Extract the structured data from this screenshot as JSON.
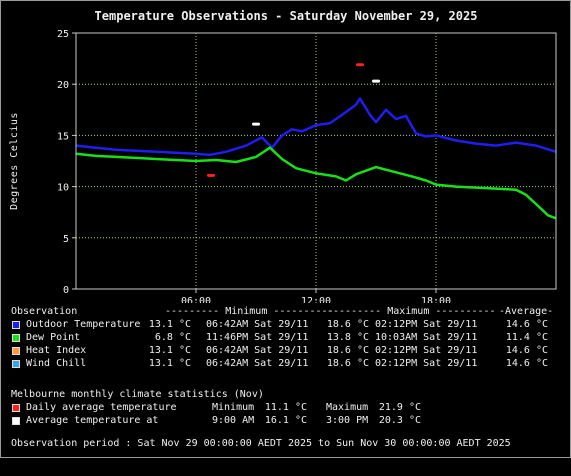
{
  "title": "Temperature Observations - Saturday November 29, 2025",
  "chart_data": {
    "type": "line",
    "title": "Temperature Observations - Saturday November 29, 2025",
    "ylabel": "Degrees Celcius",
    "xlabel": "",
    "x_range_hours": [
      0,
      24
    ],
    "ylim": [
      0,
      25
    ],
    "x_ticks": [
      {
        "hour": 6,
        "label": "06:00"
      },
      {
        "hour": 12,
        "label": "12:00"
      },
      {
        "hour": 18,
        "label": "18:00"
      }
    ],
    "y_ticks": [
      0,
      5,
      10,
      15,
      20,
      25
    ],
    "grid": true,
    "series": [
      {
        "name": "Outdoor Temperature",
        "color": "#1e1ef0",
        "points": [
          [
            0,
            14.0
          ],
          [
            1,
            13.8
          ],
          [
            2,
            13.6
          ],
          [
            3,
            13.5
          ],
          [
            4,
            13.4
          ],
          [
            5,
            13.3
          ],
          [
            6,
            13.2
          ],
          [
            6.7,
            13.1
          ],
          [
            7.5,
            13.4
          ],
          [
            8.5,
            14.0
          ],
          [
            9.3,
            14.8
          ],
          [
            9.8,
            13.8
          ],
          [
            10.3,
            15.0
          ],
          [
            10.8,
            15.6
          ],
          [
            11.3,
            15.4
          ],
          [
            12,
            16.0
          ],
          [
            12.7,
            16.2
          ],
          [
            13.3,
            17.0
          ],
          [
            14.0,
            18.0
          ],
          [
            14.2,
            18.6
          ],
          [
            14.7,
            17.0
          ],
          [
            15.0,
            16.3
          ],
          [
            15.5,
            17.5
          ],
          [
            16.0,
            16.6
          ],
          [
            16.5,
            16.9
          ],
          [
            17,
            15.2
          ],
          [
            17.5,
            14.9
          ],
          [
            18,
            15.0
          ],
          [
            19,
            14.5
          ],
          [
            20,
            14.2
          ],
          [
            21,
            14.0
          ],
          [
            22,
            14.3
          ],
          [
            23,
            14.0
          ],
          [
            24,
            13.4
          ]
        ]
      },
      {
        "name": "Dew Point",
        "color": "#18e018",
        "points": [
          [
            0,
            13.2
          ],
          [
            1,
            13.0
          ],
          [
            2,
            12.9
          ],
          [
            3,
            12.8
          ],
          [
            4,
            12.7
          ],
          [
            5,
            12.6
          ],
          [
            6,
            12.5
          ],
          [
            7,
            12.6
          ],
          [
            8,
            12.4
          ],
          [
            9,
            12.9
          ],
          [
            9.7,
            13.8
          ],
          [
            10.3,
            12.7
          ],
          [
            11,
            11.8
          ],
          [
            12,
            11.3
          ],
          [
            13,
            11.0
          ],
          [
            13.5,
            10.6
          ],
          [
            14,
            11.2
          ],
          [
            15,
            11.9
          ],
          [
            16,
            11.4
          ],
          [
            16.8,
            11.0
          ],
          [
            17.5,
            10.6
          ],
          [
            18,
            10.2
          ],
          [
            19,
            10.0
          ],
          [
            20,
            9.9
          ],
          [
            21,
            9.8
          ],
          [
            22,
            9.7
          ],
          [
            22.5,
            9.2
          ],
          [
            23,
            8.3
          ],
          [
            23.6,
            7.2
          ],
          [
            24,
            6.9
          ]
        ]
      }
    ],
    "climate_markers": [
      {
        "series": "Daily average temperature",
        "color": "#ff2020",
        "kind": "minimum",
        "hour": 6.75,
        "value": 11.1
      },
      {
        "series": "Daily average temperature",
        "color": "#ff2020",
        "kind": "maximum",
        "hour": 14.2,
        "value": 21.9
      },
      {
        "series": "Average temperature at",
        "color": "#ffffff",
        "kind": "09:00",
        "hour": 9.0,
        "value": 16.1
      },
      {
        "series": "Average temperature at",
        "color": "#ffffff",
        "kind": "15:00",
        "hour": 15.0,
        "value": 20.3
      }
    ]
  },
  "stats": {
    "header": {
      "observation": "Observation",
      "minimum": "--------- Minimum ----------",
      "maximum": "--------- Maximum ----------",
      "average": "-Average-"
    },
    "rows": [
      {
        "name": "Outdoor Temperature",
        "color": "#1e1ef0",
        "min": "13.1 °C",
        "min_time": "06:42AM Sat 29/11",
        "max": "18.6 °C",
        "max_time": "02:12PM Sat 29/11",
        "avg": "14.6 °C"
      },
      {
        "name": "Dew Point",
        "color": "#18e018",
        "min": "6.8 °C",
        "min_time": "11:46PM Sat 29/11",
        "max": "13.8 °C",
        "max_time": "10:03AM Sat 29/11",
        "avg": "11.4 °C"
      },
      {
        "name": "Heat Index",
        "color": "#ff9933",
        "min": "13.1 °C",
        "min_time": "06:42AM Sat 29/11",
        "max": "18.6 °C",
        "max_time": "02:12PM Sat 29/11",
        "avg": "14.6 °C"
      },
      {
        "name": "Wind Chill",
        "color": "#33a8e6",
        "min": "13.1 °C",
        "min_time": "06:42AM Sat 29/11",
        "max": "18.6 °C",
        "max_time": "02:12PM Sat 29/11",
        "avg": "14.6 °C"
      }
    ],
    "climate_title": "Melbourne monthly climate statistics (Nov)",
    "climate_rows": [
      {
        "name": "Daily average temperature",
        "color": "#ff2020",
        "label1": "Minimum",
        "value1": "11.1 °C",
        "label2": "Maximum",
        "value2": "21.9 °C"
      },
      {
        "name": "Average temperature at",
        "color": "#ffffff",
        "label1": "9:00 AM",
        "value1": "16.1 °C",
        "label2": "3:00 PM",
        "value2": "20.3 °C"
      }
    ],
    "period": "Observation period : Sat Nov 29 00:00:00 AEDT 2025 to Sun Nov 30 00:00:00 AEDT 2025"
  }
}
